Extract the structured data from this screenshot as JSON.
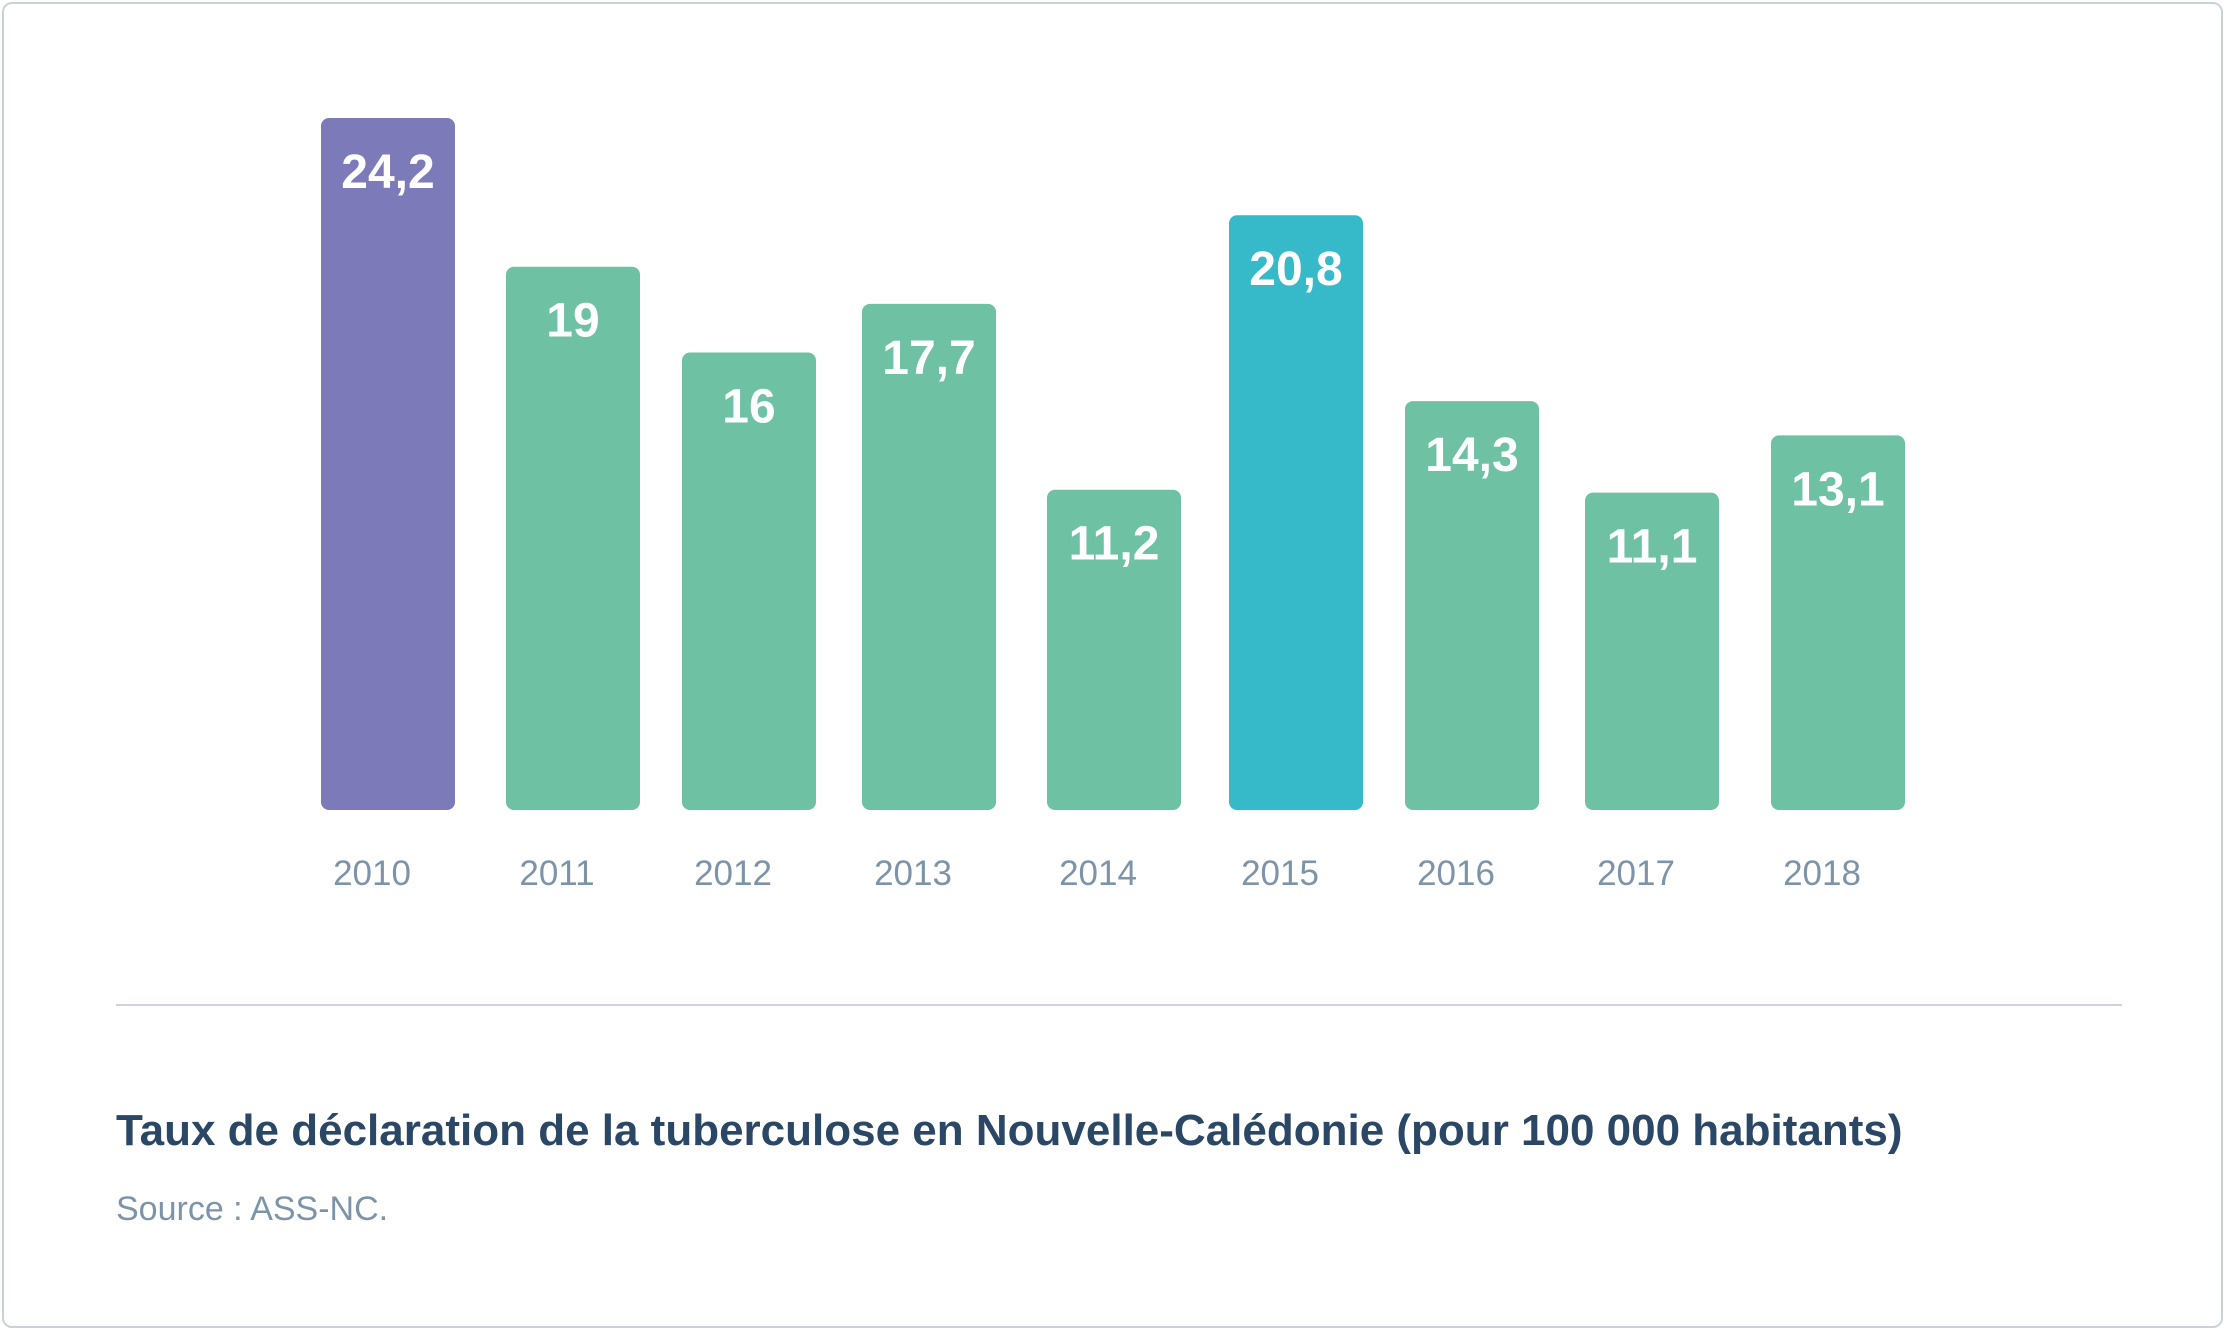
{
  "chart_data": {
    "type": "bar",
    "categories": [
      "2010",
      "2011",
      "2012",
      "2013",
      "2014",
      "2015",
      "2016",
      "2017",
      "2018"
    ],
    "values": [
      24.2,
      19,
      16,
      17.7,
      11.2,
      20.8,
      14.3,
      11.1,
      13.1
    ],
    "value_labels": [
      "24,2",
      "19",
      "16",
      "17,7",
      "11,2",
      "20,8",
      "14,3",
      "11,1",
      "13,1"
    ],
    "colors": [
      "#7d7aba",
      "#6ec1a3",
      "#6ec1a3",
      "#6ec1a3",
      "#6ec1a3",
      "#36b9c8",
      "#6ec1a3",
      "#6ec1a3",
      "#6ec1a3"
    ],
    "title": "Taux de déclaration de la tuberculose en Nouvelle-Calédonie (pour 100 000 habitants)",
    "xlabel": "",
    "ylabel": "",
    "ylim": [
      0,
      24.2
    ],
    "grid": false,
    "legend": "none"
  },
  "caption": {
    "title": "Taux de déclaration de la tuberculose en Nouvelle-Calédonie (pour 100 000 habitants)",
    "source": "Source : ASS-NC."
  },
  "style": {
    "tick_label_color": "#7d94a8",
    "value_label_color": "#ffffff",
    "caption_color": "#2a4765",
    "border_color": "#c9d2dc"
  }
}
